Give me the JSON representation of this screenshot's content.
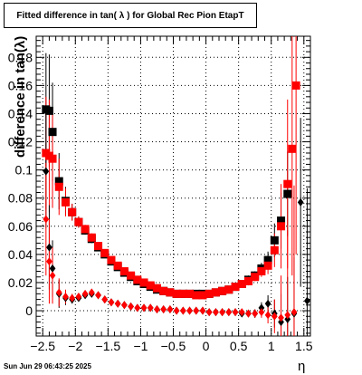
{
  "title": "Fitted difference in tan( λ ) for Global Rec Pion EtapT",
  "timestamp": "Sun Jun 29 06:43:25 2025",
  "colors": {
    "series_black": "#000000",
    "series_red": "#ff0000",
    "grid": "#000000"
  },
  "chart_data": {
    "type": "scatter",
    "title": "Fitted difference in tan( λ ) for Global Rec Pion EtapT",
    "xlabel": "η",
    "ylabel": "difference in tan(λ)",
    "xlim": [
      -2.6,
      1.6
    ],
    "ylim": [
      -0.018,
      0.195
    ],
    "grid": true,
    "x_ticks": [
      {
        "value": -2.5,
        "label": "−2.5"
      },
      {
        "value": -2,
        "label": "−2"
      },
      {
        "value": -1.5,
        "label": "−1.5"
      },
      {
        "value": -1,
        "label": "−1"
      },
      {
        "value": -0.5,
        "label": "−0.5"
      },
      {
        "value": 0,
        "label": "0"
      },
      {
        "value": 0.5,
        "label": "0.5"
      },
      {
        "value": 1,
        "label": "1"
      },
      {
        "value": 1.5,
        "label": "1.5"
      }
    ],
    "y_ticks": [
      {
        "value": 0,
        "label": "0"
      },
      {
        "value": 0.02,
        "label": "0.02"
      },
      {
        "value": 0.04,
        "label": "0.04"
      },
      {
        "value": 0.06,
        "label": "0.06"
      },
      {
        "value": 0.08,
        "label": "0.08"
      },
      {
        "value": 0.1,
        "label": "0.1"
      },
      {
        "value": 0.12,
        "label": "0.12"
      },
      {
        "value": 0.14,
        "label": "0.14"
      },
      {
        "value": 0.16,
        "label": "0.16"
      },
      {
        "value": 0.18,
        "label": "0.18"
      }
    ],
    "series": [
      {
        "color": "#000000",
        "marker": "square",
        "x": [
          -2.45,
          -2.4,
          -2.35,
          -2.25,
          -2.15,
          -2.05,
          -1.95,
          -1.85,
          -1.75,
          -1.65,
          -1.55,
          -1.45,
          -1.35,
          -1.25,
          -1.15,
          -1.05,
          -0.95,
          -0.85,
          -0.75,
          -0.65,
          -0.55,
          -0.45,
          -0.35,
          -0.25,
          -0.15,
          -0.05,
          0.05,
          0.15,
          0.25,
          0.35,
          0.45,
          0.55,
          0.65,
          0.75,
          0.85,
          0.95,
          1.05,
          1.15,
          1.25
        ],
        "y": [
          0.143,
          0.142,
          0.127,
          0.092,
          0.078,
          0.07,
          0.063,
          0.057,
          0.051,
          0.045,
          0.04,
          0.035,
          0.031,
          0.027,
          0.024,
          0.021,
          0.019,
          0.017,
          0.015,
          0.014,
          0.013,
          0.012,
          0.012,
          0.012,
          0.012,
          0.012,
          0.012,
          0.013,
          0.014,
          0.015,
          0.017,
          0.019,
          0.022,
          0.025,
          0.03,
          0.036,
          0.05,
          0.064,
          0.083
        ],
        "yerr": [
          0.04,
          0.04,
          0.035,
          0.02,
          0.01,
          0.006,
          0.004,
          0.003,
          0.003,
          0.002,
          0.002,
          0.002,
          0.002,
          0.002,
          0.002,
          0.002,
          0.002,
          0.002,
          0.002,
          0.002,
          0.002,
          0.002,
          0.002,
          0.002,
          0.002,
          0.002,
          0.002,
          0.002,
          0.002,
          0.002,
          0.002,
          0.002,
          0.003,
          0.003,
          0.004,
          0.006,
          0.012,
          0.02,
          0.03
        ]
      },
      {
        "color": "#ff0000",
        "marker": "square",
        "x": [
          -2.45,
          -2.4,
          -2.35,
          -2.25,
          -2.15,
          -2.05,
          -1.95,
          -1.85,
          -1.75,
          -1.65,
          -1.55,
          -1.45,
          -1.35,
          -1.25,
          -1.15,
          -1.05,
          -0.95,
          -0.85,
          -0.75,
          -0.65,
          -0.55,
          -0.45,
          -0.35,
          -0.25,
          -0.15,
          -0.05,
          0.05,
          0.15,
          0.25,
          0.35,
          0.45,
          0.55,
          0.65,
          0.75,
          0.85,
          0.95,
          1.05,
          1.15,
          1.25,
          1.32,
          1.38
        ],
        "y": [
          0.112,
          0.11,
          0.108,
          0.088,
          0.077,
          0.07,
          0.063,
          0.058,
          0.052,
          0.046,
          0.041,
          0.036,
          0.032,
          0.028,
          0.025,
          0.022,
          0.02,
          0.018,
          0.016,
          0.014,
          0.013,
          0.012,
          0.012,
          0.012,
          0.011,
          0.011,
          0.012,
          0.013,
          0.014,
          0.015,
          0.017,
          0.019,
          0.021,
          0.024,
          0.028,
          0.032,
          0.043,
          0.06,
          0.09,
          0.115,
          0.16
        ],
        "yerr": [
          0.04,
          0.04,
          0.035,
          0.02,
          0.01,
          0.006,
          0.004,
          0.003,
          0.003,
          0.002,
          0.002,
          0.002,
          0.002,
          0.002,
          0.002,
          0.002,
          0.002,
          0.002,
          0.002,
          0.002,
          0.002,
          0.002,
          0.002,
          0.002,
          0.002,
          0.002,
          0.002,
          0.002,
          0.002,
          0.002,
          0.002,
          0.002,
          0.003,
          0.003,
          0.004,
          0.006,
          0.012,
          0.03,
          0.06,
          0.09,
          0.12
        ]
      },
      {
        "color": "#000000",
        "marker": "diamond",
        "x": [
          -2.45,
          -2.4,
          -2.35,
          -2.25,
          -2.15,
          -2.05,
          -1.95,
          -1.85,
          -1.75,
          -1.65,
          -1.55,
          -1.45,
          -1.35,
          -1.25,
          -1.15,
          -1.05,
          -0.95,
          -0.85,
          -0.75,
          -0.65,
          -0.55,
          -0.45,
          -0.35,
          -0.25,
          -0.15,
          -0.05,
          0.05,
          0.15,
          0.25,
          0.35,
          0.45,
          0.55,
          0.65,
          0.75,
          0.85,
          0.95,
          1.05,
          1.15,
          1.25,
          1.35,
          1.45,
          1.55
        ],
        "y": [
          0.099,
          0.045,
          0.03,
          0.012,
          0.009,
          0.008,
          0.009,
          0.011,
          0.012,
          0.011,
          0.008,
          0.006,
          0.005,
          0.004,
          0.003,
          0.002,
          0.002,
          0.002,
          0.001,
          0.001,
          0.001,
          0.0,
          0.0,
          0.0,
          0.0,
          0.0,
          -0.001,
          -0.001,
          -0.001,
          -0.001,
          -0.001,
          -0.002,
          -0.002,
          -0.002,
          0.002,
          0.005,
          -0.002,
          -0.008,
          -0.006,
          -0.002,
          0.077,
          0.007
        ],
        "yerr": [
          0.04,
          0.03,
          0.02,
          0.01,
          0.005,
          0.003,
          0.002,
          0.002,
          0.002,
          0.002,
          0.002,
          0.002,
          0.002,
          0.002,
          0.002,
          0.002,
          0.002,
          0.002,
          0.002,
          0.002,
          0.002,
          0.002,
          0.002,
          0.002,
          0.002,
          0.002,
          0.002,
          0.002,
          0.002,
          0.002,
          0.002,
          0.002,
          0.002,
          0.003,
          0.004,
          0.006,
          0.01,
          0.02,
          0.03,
          0.04,
          0.06,
          0.08
        ]
      },
      {
        "color": "#ff0000",
        "marker": "diamond",
        "x": [
          -2.45,
          -2.4,
          -2.35,
          -2.25,
          -2.15,
          -2.05,
          -1.95,
          -1.85,
          -1.75,
          -1.65,
          -1.55,
          -1.45,
          -1.35,
          -1.25,
          -1.15,
          -1.05,
          -0.95,
          -0.85,
          -0.75,
          -0.65,
          -0.55,
          -0.45,
          -0.35,
          -0.25,
          -0.15,
          -0.05,
          0.05,
          0.15,
          0.25,
          0.35,
          0.45,
          0.55,
          0.65,
          0.75,
          0.85,
          0.95,
          1.05,
          1.15,
          1.25,
          1.35
        ],
        "y": [
          0.065,
          0.035,
          0.025,
          0.013,
          0.01,
          0.009,
          0.01,
          0.012,
          0.013,
          0.011,
          0.008,
          0.006,
          0.005,
          0.004,
          0.003,
          0.002,
          0.002,
          0.002,
          0.001,
          0.001,
          0.001,
          0.0,
          0.0,
          0.0,
          0.0,
          0.0,
          -0.001,
          -0.001,
          -0.001,
          -0.001,
          -0.001,
          -0.001,
          -0.002,
          -0.002,
          -0.001,
          -0.003,
          -0.004,
          -0.005,
          -0.003,
          -0.001
        ],
        "yerr": [
          0.04,
          0.03,
          0.02,
          0.01,
          0.005,
          0.003,
          0.002,
          0.002,
          0.002,
          0.002,
          0.002,
          0.002,
          0.002,
          0.002,
          0.002,
          0.002,
          0.002,
          0.002,
          0.002,
          0.002,
          0.002,
          0.002,
          0.002,
          0.002,
          0.002,
          0.002,
          0.002,
          0.002,
          0.002,
          0.002,
          0.002,
          0.002,
          0.002,
          0.003,
          0.004,
          0.006,
          0.012,
          0.03,
          0.06,
          0.09
        ]
      }
    ]
  }
}
